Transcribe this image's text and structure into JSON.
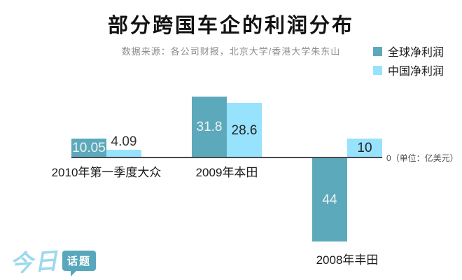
{
  "chart": {
    "title": "部分跨国车企的利润分布",
    "subtitle": "数据来源：各公司财报，北京大学/香港大学朱东山",
    "unit_label": "0（单位：亿美元）"
  },
  "chart_data": {
    "type": "bar",
    "title": "部分跨国车企的利润分布",
    "subtitle": "数据来源：各公司财报，北京大学/香港大学朱东山",
    "categories": [
      "2010年第一季度大众",
      "2009年本田",
      "2008年丰田"
    ],
    "series": [
      {
        "name": "全球净利润",
        "color": "#5da9bc",
        "values": [
          10.05,
          31.8,
          -44
        ],
        "labels": [
          "10.05",
          "31.8",
          "44"
        ]
      },
      {
        "name": "中国净利润",
        "color": "#97e2fd",
        "values": [
          4.09,
          28.6,
          10
        ],
        "labels": [
          "4.09",
          "28.6",
          "10"
        ]
      }
    ],
    "unit": "亿美元",
    "zero_axis_label": "0（单位：亿美元）",
    "legend_position": "top-right",
    "grid": false,
    "zero_line": true,
    "note": "2008年丰田全球净利润为亏损44亿美元（柱向下）"
  },
  "logo": {
    "part1": "今日",
    "part2": "话题",
    "script_color": "#9ed8ef",
    "box_color": "#58a7bc"
  }
}
